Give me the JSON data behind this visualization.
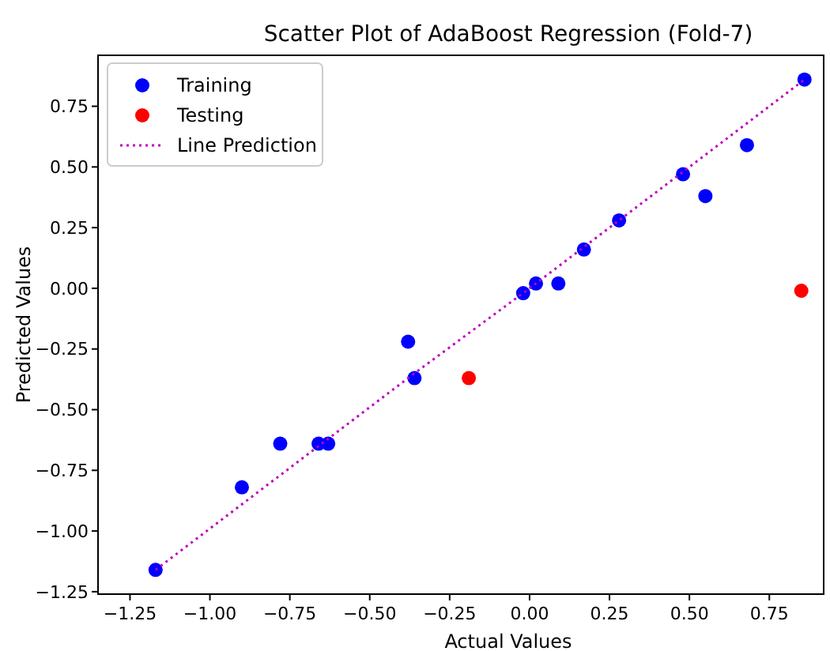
{
  "chart_data": {
    "type": "scatter",
    "title": "Scatter Plot of AdaBoost Regression (Fold-7)",
    "xlabel": "Actual Values",
    "ylabel": "Predicted Values",
    "xlim": [
      -1.35,
      0.92
    ],
    "xticks": [
      {
        "value": -1.25,
        "label": "−1.25"
      },
      {
        "value": -1,
        "label": "−1.00"
      },
      {
        "value": -0.75,
        "label": "−0.75"
      },
      {
        "value": -0.5,
        "label": "−0.50"
      },
      {
        "value": -0.25,
        "label": "−0.25"
      },
      {
        "value": 0,
        "label": "0.00"
      },
      {
        "value": 0.25,
        "label": "0.25"
      },
      {
        "value": 0.5,
        "label": "0.50"
      },
      {
        "value": 0.75,
        "label": "0.75"
      }
    ],
    "ylim": [
      -1.26,
      0.96
    ],
    "yticks": [
      {
        "value": -1.25,
        "label": "−1.25"
      },
      {
        "value": -1,
        "label": "−1.00"
      },
      {
        "value": -0.75,
        "label": "−0.75"
      },
      {
        "value": -0.5,
        "label": "−0.50"
      },
      {
        "value": -0.25,
        "label": "−0.25"
      },
      {
        "value": 0,
        "label": "0.00"
      },
      {
        "value": 0.25,
        "label": "0.25"
      },
      {
        "value": 0.5,
        "label": "0.50"
      },
      {
        "value": 0.75,
        "label": "0.75"
      }
    ],
    "grid": false,
    "legend": "top left",
    "marker": "circle",
    "series": [
      {
        "name": "Training",
        "color": "#0000ff",
        "x": [
          -1.17,
          -0.9,
          -0.78,
          -0.66,
          -0.63,
          -0.38,
          -0.36,
          -0.02,
          0.02,
          0.09,
          0.17,
          0.28,
          0.48,
          0.55,
          0.68,
          0.86
        ],
        "values": [
          -1.16,
          -0.82,
          -0.64,
          -0.64,
          -0.64,
          -0.22,
          -0.37,
          -0.02,
          0.02,
          0.02,
          0.16,
          0.28,
          0.47,
          0.38,
          0.59,
          0.86
        ]
      },
      {
        "name": "Testing",
        "color": "#ff0000",
        "x": [
          -0.19,
          0.85
        ],
        "values": [
          -0.37,
          -0.01
        ]
      },
      {
        "name": "Line Prediction",
        "color": "#bf00bf",
        "type": "line",
        "marker": "none",
        "line_style": "dotted",
        "x": [
          -1.17,
          -0.66,
          -0.36,
          0.0,
          0.28,
          0.48,
          0.86
        ],
        "values": [
          -1.16,
          -0.65,
          -0.35,
          0.0,
          0.28,
          0.48,
          0.86
        ]
      }
    ]
  }
}
